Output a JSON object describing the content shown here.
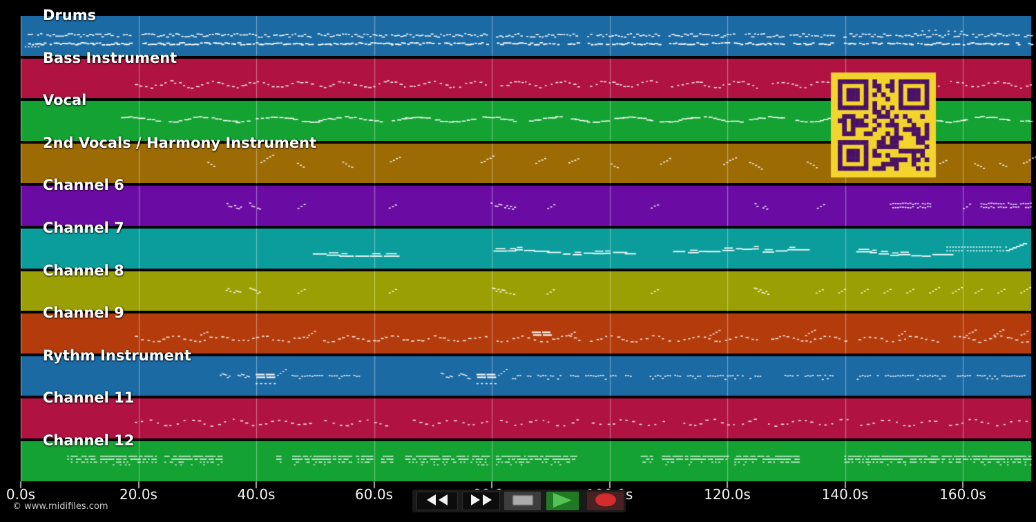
{
  "page": {
    "watermark": "© www.midifiles.com",
    "background": "#000000"
  },
  "timeline": {
    "unit": "seconds",
    "duration_s": 171.6,
    "ticks": [
      {
        "label": "0.0s",
        "s": 0
      },
      {
        "label": "20.0s",
        "s": 20
      },
      {
        "label": "40.0s",
        "s": 40
      },
      {
        "label": "60.0s",
        "s": 60
      },
      {
        "label": "80.0s",
        "s": 80
      },
      {
        "label": "100.0s",
        "s": 100
      },
      {
        "label": "120.0s",
        "s": 120
      },
      {
        "label": "140.0s",
        "s": 140
      },
      {
        "label": "160.0s",
        "s": 160
      }
    ]
  },
  "tracks": [
    {
      "label": "Drums",
      "color": "#1b6aa4",
      "pattern": {
        "style": "drums",
        "lead_in": [
          0.7,
          3.2
        ],
        "raised": [
          153,
          160
        ],
        "segments": [
          [
            1.2,
            18.6
          ],
          [
            20.5,
            49.2
          ],
          [
            50.4,
            79.2
          ],
          [
            80.7,
            94.6
          ],
          [
            96.2,
            108.5
          ],
          [
            110,
            122
          ],
          [
            123,
            129.3
          ],
          [
            130.6,
            138.1
          ],
          [
            139.7,
            171.6
          ]
        ]
      }
    },
    {
      "label": "Bass Instrument",
      "color": "#b01241",
      "pattern": {
        "style": "wavy",
        "start": 19.4,
        "end": 171.6,
        "base": 37,
        "amp": 4,
        "step": 0.8,
        "gaps": [
          [
            49.3,
            50.5
          ],
          [
            79.3,
            80.8
          ],
          [
            94.7,
            96.1
          ],
          [
            108.6,
            110
          ],
          [
            125.3,
            126.8
          ],
          [
            140.6,
            142.1
          ],
          [
            156,
            157.5
          ]
        ]
      }
    },
    {
      "label": "Vocal",
      "color": "#14a233",
      "pattern": {
        "style": "vocal",
        "start": 17,
        "end": 171.6,
        "phrase": 7.6,
        "rest": 1.1
      }
    },
    {
      "label": "2nd Vocals / Harmony Instrument",
      "color": "#9c6b04",
      "pattern": {
        "style": "clusters",
        "events": [
          31.7,
          40.7,
          46.9,
          54.6,
          62.7,
          78.1,
          87.4,
          93,
          100.2,
          108.6,
          119.3,
          123.7,
          133.5,
          147.5,
          156,
          161.9,
          166.2,
          170.2
        ]
      }
    },
    {
      "label": "Channel 6",
      "color": "#6a0ca4",
      "pattern": {
        "style": "mixed",
        "stacked": [
          [
            34.6,
            37.4
          ],
          [
            38.8,
            40.7
          ],
          [
            79.8,
            83.8
          ],
          [
            124.3,
            126.9
          ]
        ],
        "diag": [
          47,
          62.5,
          89.4,
          107,
          135.2,
          160
        ],
        "dense": [
          [
            147.6,
            154.4
          ],
          [
            163,
            171.6
          ]
        ]
      }
    },
    {
      "label": "Channel 7",
      "color": "#0b9c9c",
      "pattern": {
        "style": "lines",
        "lines": [
          [
            49.6,
            62.6
          ],
          [
            80.3,
            93.8
          ],
          [
            95.6,
            102.6
          ],
          [
            110.8,
            124.9
          ],
          [
            126,
            132.9
          ],
          [
            141.9,
            157.2
          ]
        ],
        "dots2": [
          [
            157.2,
            167.3
          ]
        ],
        "rise": [
          [
            167.3,
            170.8
          ]
        ]
      }
    },
    {
      "label": "Channel 8",
      "color": "#9aa004",
      "pattern": {
        "style": "mixed",
        "stacked": [
          [
            34.8,
            37.3
          ],
          [
            38.8,
            40.6
          ],
          [
            80,
            83.8
          ],
          [
            124.5,
            127
          ]
        ],
        "diag": [
          47,
          62.5,
          89.3,
          107,
          135
        ],
        "periodic": {
          "start": 138.8,
          "step": 3.87,
          "count": 9
        },
        "dense": []
      }
    },
    {
      "label": "Channel 9",
      "color": "#b43c0c",
      "pattern": {
        "style": "wavy",
        "start": 19.4,
        "end": 171.6,
        "base": 36,
        "amp": 3.5,
        "step": 0.85,
        "gaps": [
          [
            49.3,
            50.5
          ],
          [
            79.3,
            80.8
          ],
          [
            94.7,
            96.1
          ],
          [
            110.1,
            111.5
          ],
          [
            125.3,
            126.8
          ],
          [
            140.6,
            142.1
          ],
          [
            156,
            157.5
          ]
        ],
        "lines2": [
          86.8
        ],
        "diag": [
          30.5,
          48.8,
          92.9,
          117,
          133.2,
          149,
          160.5,
          165.2,
          169.8
        ]
      }
    },
    {
      "label": "Rythm Instrument",
      "color": "#1b6aa4",
      "pattern": {
        "style": "rythm",
        "clusters": [
          [
            33.8,
            35.6
          ],
          [
            36.8,
            38.6
          ],
          [
            71.3,
            73.1
          ],
          [
            74.3,
            76.1
          ]
        ],
        "lines2": [
          39.9,
          77.4
        ],
        "dots": [
          [
            46,
            57.5
          ],
          [
            83,
            104.5
          ],
          [
            106.8,
            110.3
          ],
          [
            111,
            125.5
          ],
          [
            129.7,
            139
          ],
          [
            142,
            171.6
          ]
        ]
      }
    },
    {
      "label": "Channel 11",
      "color": "#b01241",
      "pattern": {
        "style": "wavy",
        "start": 19.4,
        "end": 171.6,
        "base": 34,
        "amp": 4,
        "step": 1.15,
        "gaps": [
          [
            49.3,
            50.5
          ],
          [
            63,
            66
          ],
          [
            79.3,
            80.8
          ],
          [
            94.7,
            96.1
          ],
          [
            110.1,
            111.5
          ],
          [
            125.3,
            126.8
          ],
          [
            140.6,
            142.1
          ],
          [
            156,
            157.5
          ]
        ]
      }
    },
    {
      "label": "Channel 12",
      "color": "#14a233",
      "pattern": {
        "style": "blocks",
        "segments": [
          [
            7.9,
            12.9
          ],
          [
            13.5,
            23.1
          ],
          [
            24.4,
            34.3
          ],
          [
            43.4,
            44.2
          ],
          [
            46.1,
            56
          ],
          [
            56.9,
            59.8
          ],
          [
            61.2,
            63
          ],
          [
            65.3,
            79.4
          ],
          [
            80.7,
            94.2
          ],
          [
            105.3,
            107.1
          ],
          [
            108.9,
            120.2
          ],
          [
            121.2,
            132.2
          ],
          [
            139.9,
            171.6
          ]
        ]
      }
    }
  ],
  "grid": {
    "line_color": "#ffffff",
    "band_line_alpha": 0.3,
    "gap_line_alpha": 0.12,
    "note_color": "#ffffff"
  },
  "qr_code": {
    "background": "#f2d42c",
    "foreground": "#4a1166"
  },
  "transport": {
    "buttons": [
      {
        "name": "rewind",
        "title": "Rewind"
      },
      {
        "name": "fast-forward",
        "title": "Fast forward"
      },
      {
        "name": "stop",
        "title": "Stop"
      },
      {
        "name": "play",
        "title": "Play"
      },
      {
        "name": "record",
        "title": "Record"
      }
    ]
  }
}
